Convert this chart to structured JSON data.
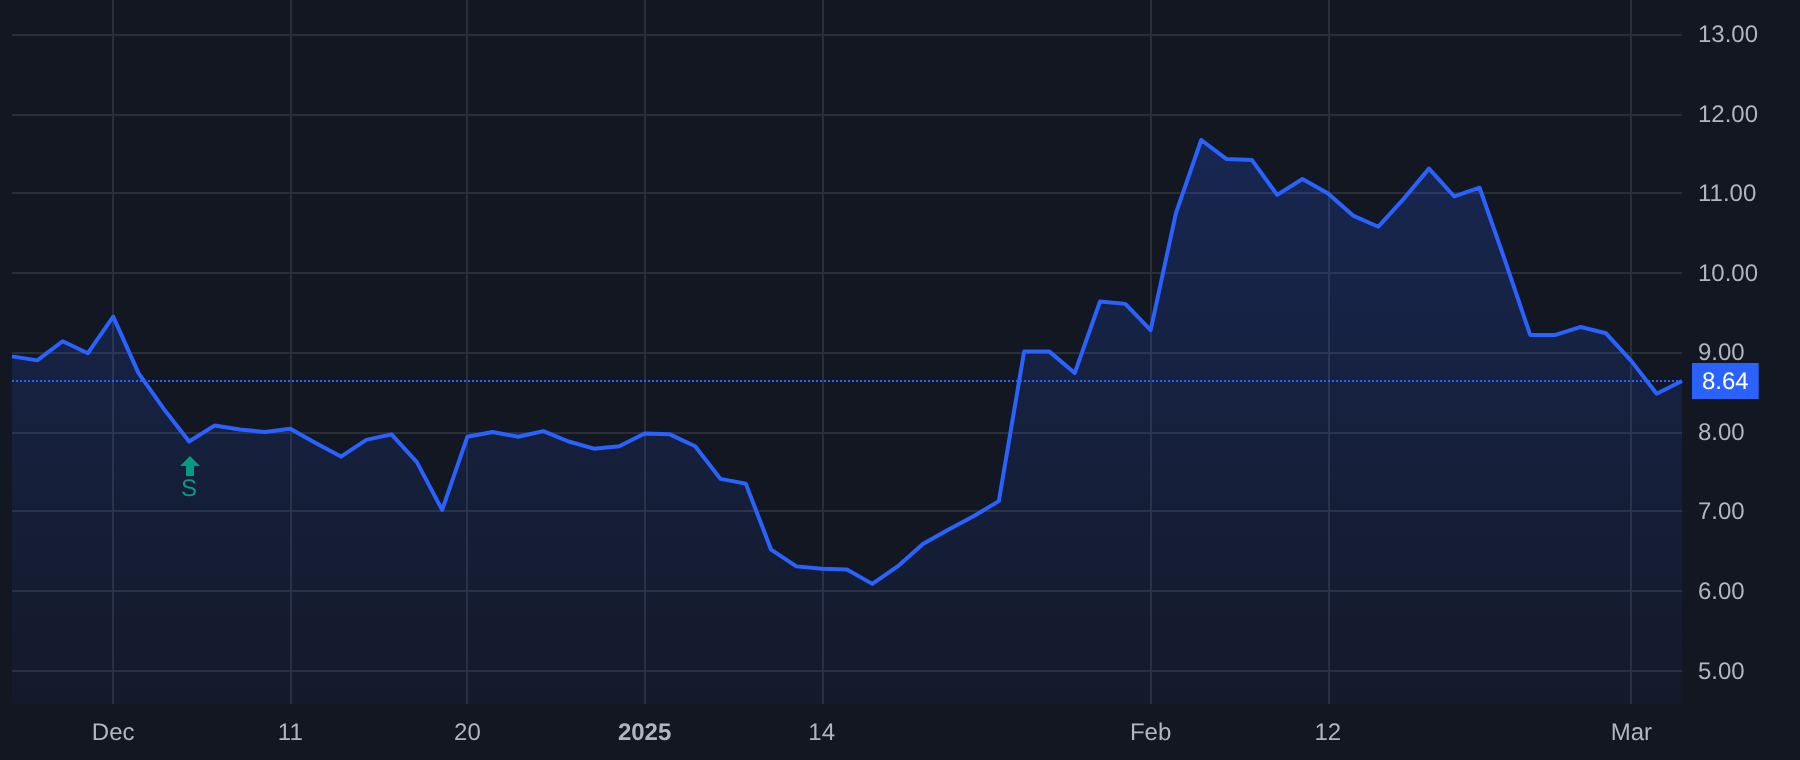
{
  "chart_data": {
    "type": "area",
    "categories": [
      null,
      null,
      null,
      null,
      "Dec",
      null,
      null,
      null,
      null,
      null,
      null,
      "11",
      null,
      null,
      null,
      null,
      null,
      null,
      "20",
      null,
      null,
      null,
      null,
      null,
      null,
      "2025",
      null,
      null,
      null,
      null,
      null,
      null,
      "14",
      null,
      null,
      null,
      null,
      null,
      null,
      null,
      null,
      null,
      null,
      null,
      null,
      "Feb",
      null,
      null,
      null,
      null,
      null,
      null,
      "12",
      null,
      null,
      null,
      null,
      null,
      null,
      null,
      null,
      null,
      null,
      null,
      "Mar",
      null,
      null
    ],
    "series": [
      {
        "color": "#2962ff",
        "values": [
          8.95,
          8.9,
          9.14,
          8.99,
          9.45,
          8.74,
          8.29,
          7.88,
          8.08,
          8.03,
          8.0,
          8.04,
          7.86,
          7.69,
          7.9,
          7.97,
          7.62,
          7.02,
          7.94,
          8.0,
          7.94,
          8.01,
          7.88,
          7.79,
          7.82,
          7.98,
          7.97,
          7.82,
          7.41,
          7.35,
          6.52,
          6.31,
          6.28,
          6.27,
          6.09,
          6.31,
          6.59,
          6.77,
          6.94,
          7.13,
          9.01,
          9.01,
          8.74,
          9.64,
          9.61,
          9.28,
          10.75,
          11.67,
          11.43,
          11.42,
          10.98,
          11.18,
          11.0,
          10.72,
          10.58,
          10.93,
          11.31,
          10.96,
          11.07,
          10.16,
          9.22,
          9.22,
          9.32,
          9.24,
          8.89,
          8.48,
          8.64
        ]
      }
    ],
    "ylim": [
      4.58,
      13.43
    ],
    "yticks": [
      {
        "value": 5,
        "label": "5.00"
      },
      {
        "value": 6,
        "label": "6.00"
      },
      {
        "value": 7,
        "label": "7.00"
      },
      {
        "value": 8,
        "label": "8.00"
      },
      {
        "value": 9,
        "label": "9.00"
      },
      {
        "value": 10,
        "label": "10.00"
      },
      {
        "value": 11,
        "label": "11.00"
      },
      {
        "value": 12,
        "label": "12.00"
      },
      {
        "value": 13,
        "label": "13.00"
      }
    ],
    "grid": true,
    "ref_lines": [
      {
        "axis": "y",
        "value": 8.64,
        "label": "8.64",
        "color": "#2962ff",
        "line_style": "dotted"
      }
    ],
    "annotations": [
      {
        "text": "S",
        "y": 7.88
      }
    ]
  }
}
